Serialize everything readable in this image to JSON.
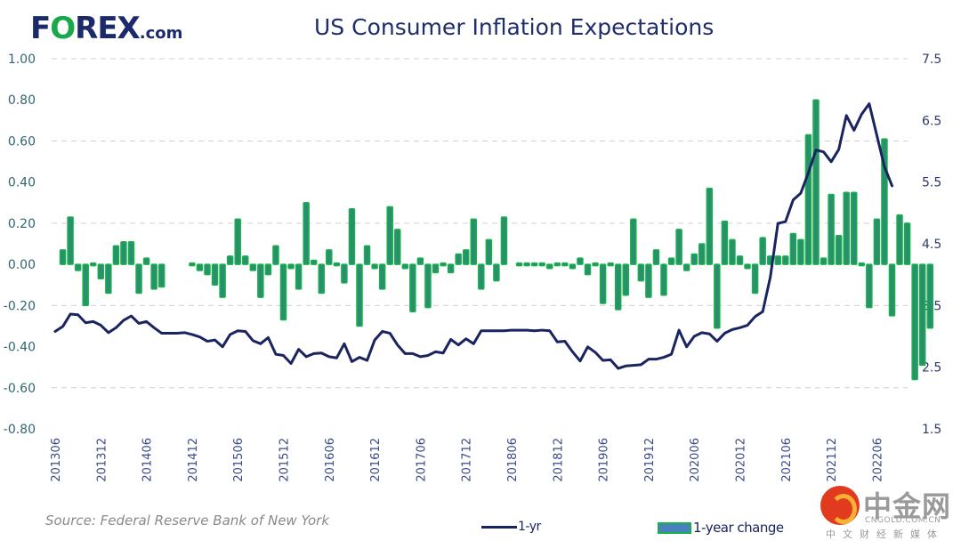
{
  "header": {
    "logo_main_a": "F",
    "logo_main_o": "O",
    "logo_main_b": "REX",
    "logo_suffix": ".com",
    "title": "US Consumer Inflation Expectations"
  },
  "source": "Source: Federal Reserve Bank of New York",
  "watermark": {
    "name_cn": "中金网",
    "name_en": "CNGOLD.COM.CN",
    "tagline": "中文财经新媒体"
  },
  "colors": {
    "line": "#1a2460",
    "bar_fill": "#2a8f6e",
    "bar_border": "#17b14b",
    "grid": "#d0d0d0",
    "legend_bar_fill": "#4a7fc0"
  },
  "chart_data": {
    "type": "bar+line",
    "title": "US Consumer Inflation Expectations",
    "xlabel": "",
    "ylabel_left": "1-year change",
    "ylabel_right": "1-yr",
    "x_start": "201306",
    "x_tick_labels": [
      "201306",
      "201312",
      "201406",
      "201412",
      "201506",
      "201512",
      "201606",
      "201612",
      "201706",
      "201712",
      "201806",
      "201812",
      "201906",
      "201912",
      "202006",
      "202012",
      "202106",
      "202112",
      "202206"
    ],
    "ylim_left": [
      -0.8,
      1.0
    ],
    "yticks_left": [
      "1.00",
      "0.80",
      "0.60",
      "0.40",
      "0.20",
      "0.00",
      "-0.20",
      "-0.40",
      "-0.60",
      "-0.80"
    ],
    "ylim_right": [
      1.5,
      7.5
    ],
    "yticks_right": [
      "7.5",
      "6.5",
      "5.5",
      "4.5",
      "3.5",
      "2.5",
      "1.5"
    ],
    "grid": true,
    "legend_position": "bottom",
    "series": [
      {
        "name": "1-yr",
        "type": "line",
        "axis": "right",
        "values": [
          3.08,
          3.16,
          3.36,
          3.35,
          3.22,
          3.24,
          3.18,
          3.06,
          3.14,
          3.26,
          3.33,
          3.21,
          3.24,
          3.14,
          3.05,
          3.05,
          3.05,
          3.06,
          3.03,
          2.99,
          2.92,
          2.94,
          2.83,
          3.03,
          3.09,
          3.08,
          2.93,
          2.88,
          2.98,
          2.71,
          2.69,
          2.56,
          2.79,
          2.67,
          2.72,
          2.73,
          2.67,
          2.65,
          2.88,
          2.59,
          2.66,
          2.61,
          2.94,
          3.08,
          3.05,
          2.86,
          2.72,
          2.72,
          2.67,
          2.69,
          2.75,
          2.73,
          2.95,
          2.86,
          2.96,
          2.88,
          3.09,
          3.09,
          3.09,
          3.09,
          3.1,
          3.1,
          3.1,
          3.09,
          3.1,
          3.09,
          2.91,
          2.92,
          2.75,
          2.6,
          2.83,
          2.74,
          2.61,
          2.62,
          2.48,
          2.52,
          2.53,
          2.54,
          2.63,
          2.63,
          2.66,
          2.71,
          3.1,
          2.83,
          3.0,
          3.06,
          3.04,
          2.92,
          3.05,
          3.11,
          3.14,
          3.18,
          3.32,
          3.4,
          3.96,
          4.83,
          4.86,
          5.21,
          5.32,
          5.65,
          6.02,
          5.99,
          5.83,
          6.03,
          6.58,
          6.34,
          6.6,
          6.77,
          6.26,
          5.75,
          5.44
        ],
        "x_start_index": 0
      },
      {
        "name": "1-year change",
        "type": "bar",
        "axis": "left",
        "values": [
          0.07,
          0.23,
          -0.03,
          -0.2,
          0.01,
          -0.07,
          -0.14,
          0.09,
          0.11,
          0.11,
          -0.14,
          0.03,
          -0.12,
          -0.11,
          null,
          null,
          null,
          0.01,
          -0.03,
          -0.05,
          -0.1,
          -0.16,
          0.04,
          0.22,
          0.04,
          -0.03,
          -0.16,
          -0.05,
          0.09,
          -0.27,
          -0.02,
          -0.12,
          0.3,
          0.02,
          -0.14,
          0.07,
          -0.01,
          -0.09,
          0.27,
          -0.3,
          0.09,
          -0.02,
          -0.12,
          0.28,
          0.17,
          -0.02,
          -0.23,
          0.03,
          -0.21,
          -0.04,
          -0.01,
          -0.04,
          0.05,
          0.07,
          0.22,
          -0.12,
          0.12,
          -0.08,
          0.23,
          null,
          0.0,
          0.01,
          0.0,
          0.0,
          -0.02,
          0.01,
          0.0,
          -0.02,
          0.03,
          -0.05,
          0.01,
          -0.19,
          0.01,
          -0.22,
          -0.15,
          0.22,
          -0.08,
          -0.16,
          0.07,
          -0.15,
          0.03,
          0.17,
          -0.03,
          0.05,
          0.1,
          0.37,
          -0.31,
          0.21,
          0.12,
          0.04,
          -0.02,
          -0.14,
          0.13,
          0.04,
          0.04,
          0.04,
          0.15,
          0.12,
          0.63,
          0.8,
          0.03,
          0.34,
          0.14,
          0.35,
          0.35,
          -0.01,
          -0.21,
          0.22,
          0.61,
          -0.25,
          0.24,
          0.2,
          -0.56,
          -0.49,
          -0.31
        ],
        "x_start_index": 1
      }
    ]
  }
}
